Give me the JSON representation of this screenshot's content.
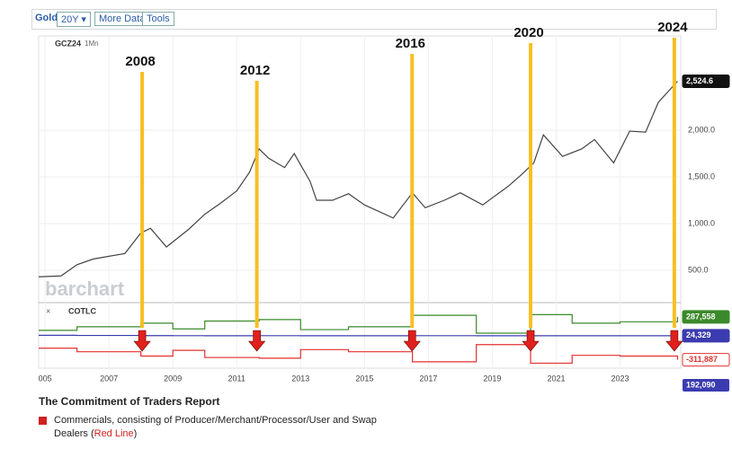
{
  "toolbar": {
    "symbol": "Gold",
    "range": "20Y",
    "buttons": [
      "More Data",
      "Tools"
    ]
  },
  "chart_data": [
    {
      "type": "line",
      "symbol": "GCZ24",
      "interval": "1Mn",
      "watermark": "barchart",
      "color": "#444444",
      "x": [
        2004.8,
        2005.5,
        2006.0,
        2006.5,
        2007.0,
        2007.5,
        2008.0,
        2008.3,
        2008.8,
        2009.5,
        2010.0,
        2010.5,
        2011.0,
        2011.4,
        2011.7,
        2012.0,
        2012.5,
        2012.8,
        2013.3,
        2013.5,
        2014.0,
        2014.5,
        2015.0,
        2015.9,
        2016.5,
        2016.9,
        2017.5,
        2018.0,
        2018.7,
        2019.5,
        2019.9,
        2020.3,
        2020.6,
        2021.2,
        2021.8,
        2022.2,
        2022.8,
        2023.3,
        2023.8,
        2024.2,
        2024.8
      ],
      "values": [
        430,
        440,
        560,
        620,
        650,
        680,
        900,
        950,
        750,
        940,
        1100,
        1220,
        1350,
        1550,
        1800,
        1700,
        1600,
        1750,
        1450,
        1250,
        1250,
        1320,
        1200,
        1060,
        1330,
        1170,
        1250,
        1330,
        1200,
        1400,
        1520,
        1650,
        1950,
        1720,
        1800,
        1900,
        1650,
        1990,
        1980,
        2300,
        2524.6
      ],
      "last_label": "2,524.6",
      "xlim": [
        2004.8,
        2024.9
      ],
      "ylim": [
        173,
        3010
      ],
      "yticks": [
        {
          "value": 500,
          "label": "500.0"
        },
        {
          "value": 1000,
          "label": "1,000.0"
        },
        {
          "value": 1500,
          "label": "1,500.0"
        },
        {
          "value": 2000,
          "label": "2,000.0"
        }
      ],
      "grid": true,
      "annotations": [
        {
          "text": "2008",
          "x": 2008.04
        },
        {
          "text": "2012",
          "x": 2011.63
        },
        {
          "text": "2016",
          "x": 2016.49
        },
        {
          "text": "2020",
          "x": 2020.2
        },
        {
          "text": "2024",
          "x": 2024.7
        }
      ],
      "annotation_color": "#f7bf22"
    },
    {
      "type": "step",
      "symbol": "COTLC",
      "xlim": [
        2004.8,
        2024.9
      ],
      "ylim": [
        -430000,
        450000
      ],
      "x": [
        2004.8,
        2006.0,
        2008.0,
        2009.0,
        2010.0,
        2011.7,
        2013.0,
        2014.5,
        2016.5,
        2018.5,
        2020.2,
        2021.5,
        2023.0,
        2024.8
      ],
      "series": [
        {
          "color": "#3a8a2a",
          "values": [
            100000,
            150000,
            200000,
            120000,
            230000,
            250000,
            110000,
            150000,
            310000,
            60000,
            320000,
            200000,
            220000,
            287558
          ],
          "last_label": "287,558"
        },
        {
          "color": "#3b3bb0",
          "values": [
            30000,
            28000,
            26000,
            25000,
            24000,
            25000,
            24000,
            24000,
            25000,
            24000,
            24000,
            24500,
            24400,
            24329
          ],
          "last_label": "24,329"
        },
        {
          "color": "#e0312f",
          "values": [
            -150000,
            -200000,
            -260000,
            -180000,
            -280000,
            -290000,
            -170000,
            -200000,
            -340000,
            -100000,
            -360000,
            -250000,
            -260000,
            -311887
          ],
          "last_label": "-311,887"
        }
      ],
      "extra_label": "192,090",
      "xticks": [
        {
          "value": 2005,
          "label": "005"
        },
        2007,
        2009,
        2011,
        2013,
        2015,
        2017,
        2019,
        2021,
        2023
      ]
    }
  ],
  "footer": {
    "title": "The Commitment of Traders Report",
    "legend": "Commercials, consisting of Producer/Merchant/Processor/User and Swap",
    "legend2": "Dealers (",
    "legend_red": "Red Line",
    "legend_end": ")"
  }
}
